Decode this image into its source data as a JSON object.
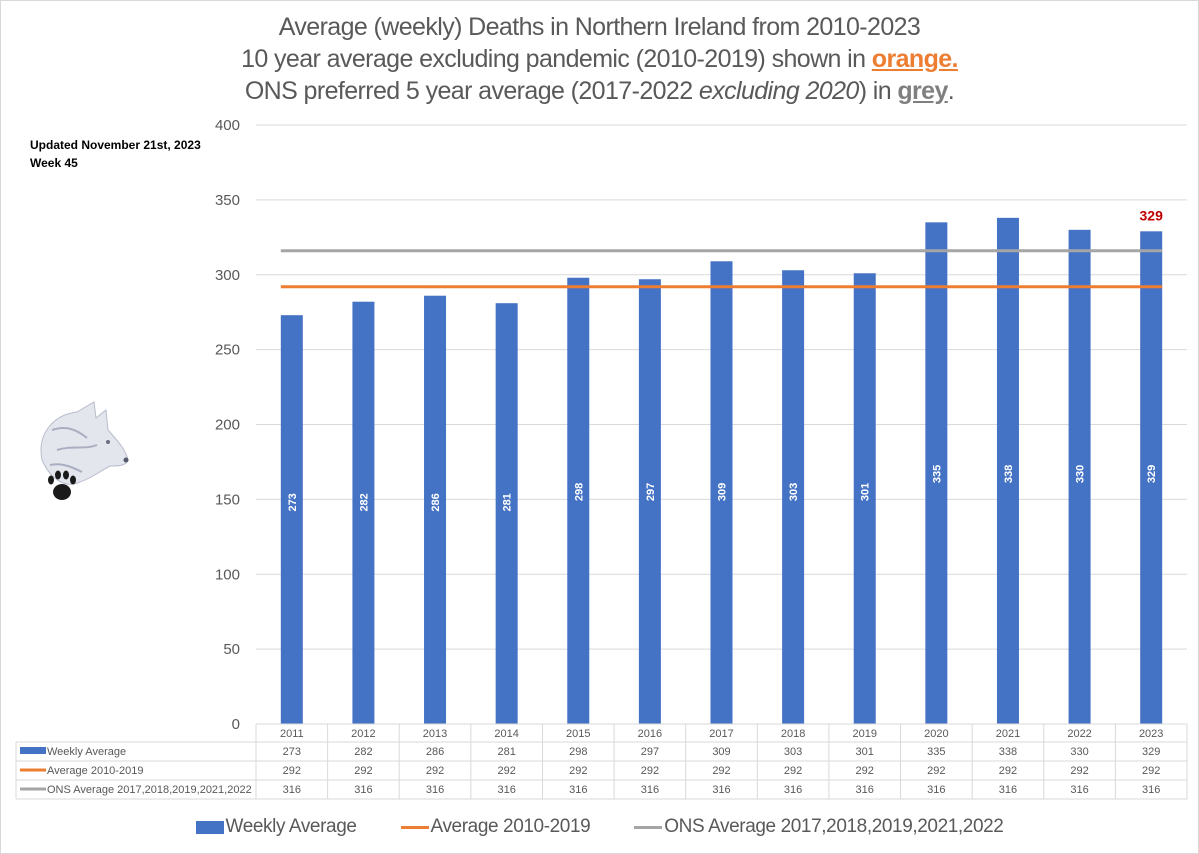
{
  "header": {
    "line1": "Average (weekly) Deaths in Northern Ireland from 2010-2023",
    "line2_prefix": "10 year average excluding pandemic (2010-2019) shown in ",
    "line2_highlight": "orange.",
    "line3_prefix": "ONS preferred 5 year average (2017-2022 ",
    "line3_italic": "excluding 2020",
    "line3_mid": ") in ",
    "line3_highlight": "grey",
    "line3_suffix": "."
  },
  "note": {
    "updated": "Updated November 21st, 2023",
    "week": "Week 45"
  },
  "logo": {
    "icon": "wolf-head-with-paw-print"
  },
  "chart_data": {
    "type": "bar",
    "title": "Average (weekly) Deaths in Northern Ireland from 2010-2023",
    "xlabel": "",
    "ylabel": "",
    "ylim": [
      0,
      400
    ],
    "yticks": [
      0,
      50,
      100,
      150,
      200,
      250,
      300,
      350,
      400
    ],
    "grid": true,
    "legend_position": "bottom",
    "categories": [
      "2011",
      "2012",
      "2013",
      "2014",
      "2015",
      "2016",
      "2017",
      "2018",
      "2019",
      "2020",
      "2021",
      "2022",
      "2023"
    ],
    "series": [
      {
        "name": "Weekly Average",
        "kind": "bar",
        "color": "#4472c4",
        "values": [
          273,
          282,
          286,
          281,
          298,
          297,
          309,
          303,
          301,
          335,
          338,
          330,
          329
        ]
      },
      {
        "name": "Average 2010-2019",
        "kind": "line",
        "color": "#ed7d31",
        "values": [
          292,
          292,
          292,
          292,
          292,
          292,
          292,
          292,
          292,
          292,
          292,
          292,
          292
        ]
      },
      {
        "name": "ONS Average 2017,2018,2019,2021,2022",
        "kind": "line",
        "color": "#a5a5a5",
        "values": [
          316,
          316,
          316,
          316,
          316,
          316,
          316,
          316,
          316,
          316,
          316,
          316,
          316
        ]
      }
    ],
    "annotations": [
      {
        "category": "2023",
        "text": "329",
        "color": "#c00000"
      }
    ],
    "data_table": true
  }
}
